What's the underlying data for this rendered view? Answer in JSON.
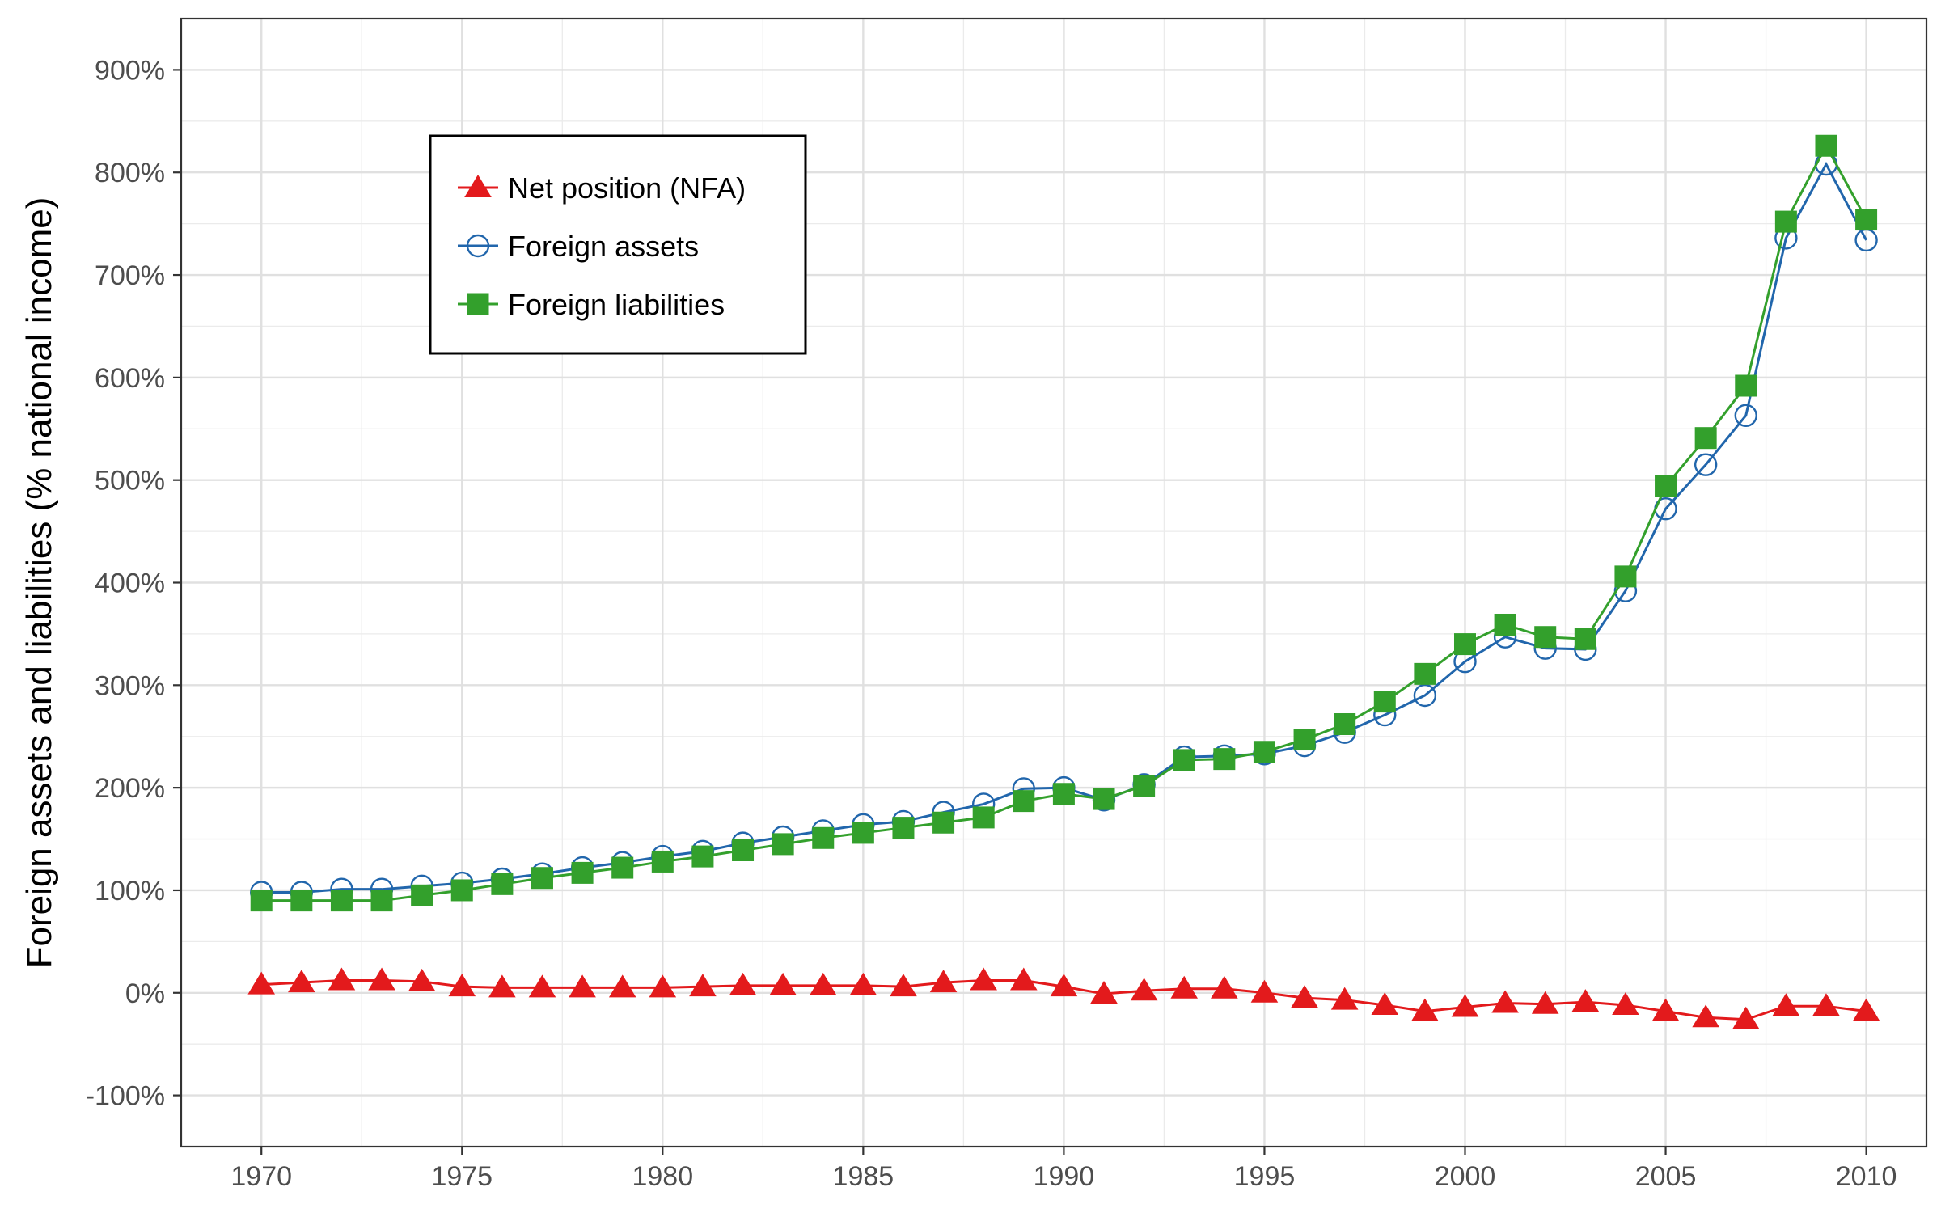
{
  "chart_data": {
    "type": "line",
    "title": "",
    "xlabel": "",
    "ylabel": "Foreign assets and liabilities (% national income)",
    "x": [
      1970,
      1971,
      1972,
      1973,
      1974,
      1975,
      1976,
      1977,
      1978,
      1979,
      1980,
      1981,
      1982,
      1983,
      1984,
      1985,
      1986,
      1987,
      1988,
      1989,
      1990,
      1991,
      1992,
      1993,
      1994,
      1995,
      1996,
      1997,
      1998,
      1999,
      2000,
      2001,
      2002,
      2003,
      2004,
      2005,
      2006,
      2007,
      2008,
      2009,
      2010
    ],
    "xlim": [
      1968,
      2011.5
    ],
    "ylim": [
      -150,
      950
    ],
    "x_ticks": [
      1970,
      1975,
      1980,
      1985,
      1990,
      1995,
      2000,
      2005,
      2010
    ],
    "x_tick_labels": [
      "1970",
      "1975",
      "1980",
      "1985",
      "1990",
      "1995",
      "2000",
      "2005",
      "2010"
    ],
    "y_ticks": [
      -100,
      0,
      100,
      200,
      300,
      400,
      500,
      600,
      700,
      800,
      900
    ],
    "y_tick_labels": [
      "-100%",
      "0%",
      "100%",
      "200%",
      "300%",
      "400%",
      "500%",
      "600%",
      "700%",
      "800%",
      "900%"
    ],
    "grid": true,
    "legend_position": "top-left",
    "series": [
      {
        "name": "Net position (NFA)",
        "color": "#e31a1c",
        "marker": "triangle",
        "values": [
          8,
          10,
          12,
          12,
          11,
          6,
          5,
          5,
          5,
          5,
          5,
          6,
          7,
          7,
          7,
          7,
          6,
          10,
          12,
          12,
          6,
          -1,
          2,
          4,
          4,
          0,
          -5,
          -7,
          -12,
          -18,
          -14,
          -10,
          -11,
          -9,
          -12,
          -18,
          -24,
          -26,
          -13,
          -13,
          -18
        ]
      },
      {
        "name": "Foreign assets",
        "color": "#2166ac",
        "marker": "open-circle",
        "values": [
          98,
          98,
          101,
          101,
          104,
          107,
          111,
          116,
          122,
          127,
          133,
          138,
          146,
          152,
          158,
          164,
          167,
          176,
          184,
          199,
          200,
          188,
          203,
          230,
          231,
          233,
          241,
          254,
          271,
          290,
          323,
          347,
          336,
          335,
          392,
          472,
          515,
          563,
          736,
          808,
          734
        ]
      },
      {
        "name": "Foreign liabilities",
        "color": "#33a02c",
        "marker": "square",
        "values": [
          90,
          90,
          90,
          90,
          95,
          100,
          106,
          112,
          117,
          122,
          128,
          133,
          139,
          145,
          151,
          156,
          161,
          166,
          171,
          187,
          194,
          189,
          202,
          227,
          228,
          235,
          247,
          262,
          284,
          311,
          340,
          359,
          347,
          345,
          406,
          494,
          541,
          592,
          752,
          826,
          754
        ]
      }
    ]
  }
}
